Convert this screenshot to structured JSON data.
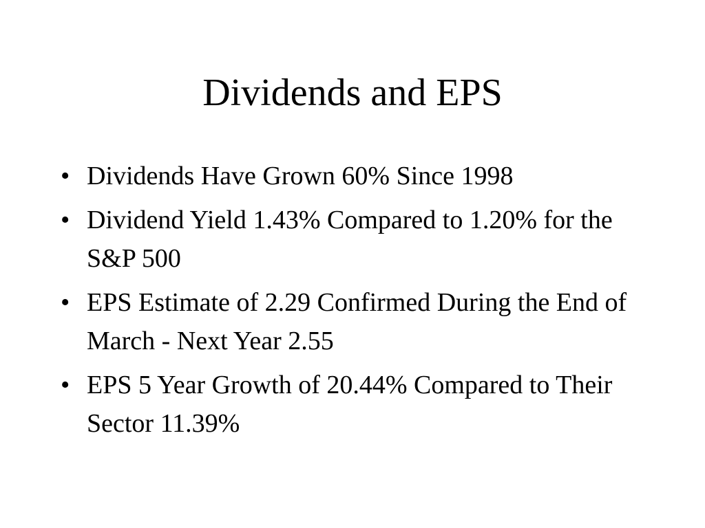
{
  "slide": {
    "title": "Dividends and EPS",
    "bullet_marker": "•",
    "bullets": [
      "Dividends Have Grown 60% Since 1998",
      "Dividend Yield 1.43% Compared to 1.20% for the S&P 500",
      "EPS Estimate of 2.29 Confirmed During the End of March - Next Year 2.55",
      "EPS 5 Year Growth of 20.44%  Compared to Their Sector 11.39%"
    ]
  }
}
